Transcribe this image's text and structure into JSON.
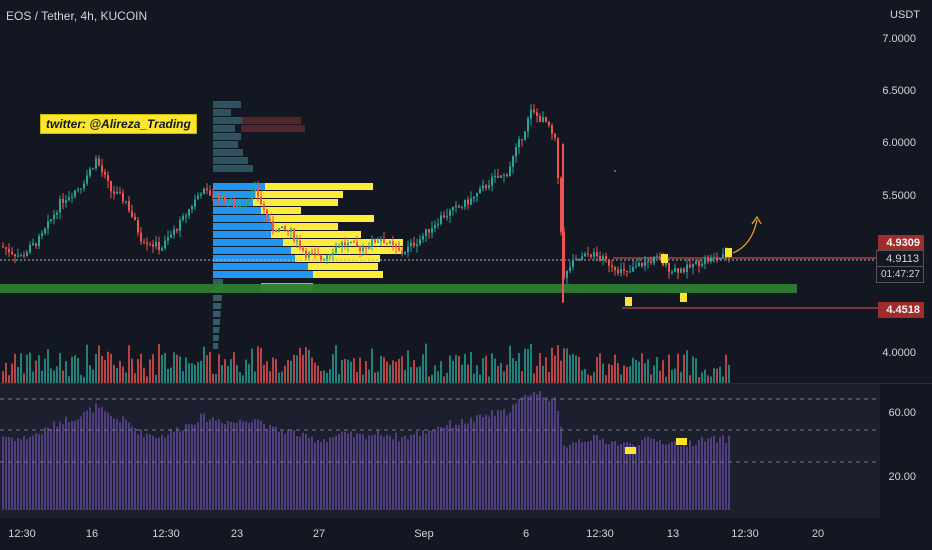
{
  "header": {
    "symbol_title": "EOS / Tether, 4h, KUCOIN",
    "currency": "USDT"
  },
  "price_axis": {
    "ticks": [
      "7.0000",
      "6.5000",
      "6.0000",
      "5.5000",
      "4.0000"
    ],
    "labels": {
      "upper_level": "4.9309",
      "current_price": "4.9113",
      "countdown": "01:47:27",
      "lower_level": "4.4518"
    }
  },
  "rsi_axis": {
    "ticks": [
      "60.00",
      "20.00"
    ]
  },
  "time_axis": {
    "ticks": [
      "12:30",
      "16",
      "12:30",
      "23",
      "27",
      "Sep",
      "6",
      "12:30",
      "13",
      "12:30",
      "20"
    ]
  },
  "annotations": {
    "twitter_tag": "twitter: @Alireza_Trading"
  },
  "colors": {
    "background": "#131722",
    "up_candle": "#26a69a",
    "down_candle": "#ef5350",
    "volume_profile_blue": "#2196f3",
    "volume_profile_yellow": "#ffeb3b",
    "support_zone": "#2e7d32",
    "resistance_line": "#ef5350",
    "rsi_fill": "#7e57c2",
    "tag_yellow": "#fbe52d"
  },
  "chart_data": {
    "type": "candlestick",
    "price_range": [
      3.8,
      7.15
    ],
    "close_path": [
      [
        0,
        5.02
      ],
      [
        20,
        4.92
      ],
      [
        40,
        5.1
      ],
      [
        60,
        5.45
      ],
      [
        80,
        5.6
      ],
      [
        95,
        5.85
      ],
      [
        110,
        5.55
      ],
      [
        125,
        5.45
      ],
      [
        140,
        5.1
      ],
      [
        160,
        5.0
      ],
      [
        180,
        5.25
      ],
      [
        200,
        5.55
      ],
      [
        215,
        5.5
      ],
      [
        235,
        5.4
      ],
      [
        255,
        5.55
      ],
      [
        270,
        5.2
      ],
      [
        290,
        5.15
      ],
      [
        305,
        4.95
      ],
      [
        320,
        4.9
      ],
      [
        340,
        5.05
      ],
      [
        360,
        5.0
      ],
      [
        380,
        5.1
      ],
      [
        400,
        4.95
      ],
      [
        420,
        5.1
      ],
      [
        440,
        5.3
      ],
      [
        460,
        5.4
      ],
      [
        475,
        5.5
      ],
      [
        490,
        5.65
      ],
      [
        505,
        5.7
      ],
      [
        520,
        6.05
      ],
      [
        530,
        6.3
      ],
      [
        545,
        6.2
      ],
      [
        555,
        6.0
      ],
      [
        563,
        4.7
      ],
      [
        570,
        4.85
      ],
      [
        590,
        4.95
      ],
      [
        610,
        4.85
      ],
      [
        625,
        4.75
      ],
      [
        640,
        4.85
      ],
      [
        655,
        4.9
      ],
      [
        670,
        4.8
      ],
      [
        685,
        4.8
      ],
      [
        700,
        4.88
      ],
      [
        715,
        4.9
      ],
      [
        728,
        4.93
      ]
    ],
    "support_zone": [
      4.62,
      4.7
    ],
    "resistance_level": 4.9309,
    "lower_level": 4.4518
  }
}
